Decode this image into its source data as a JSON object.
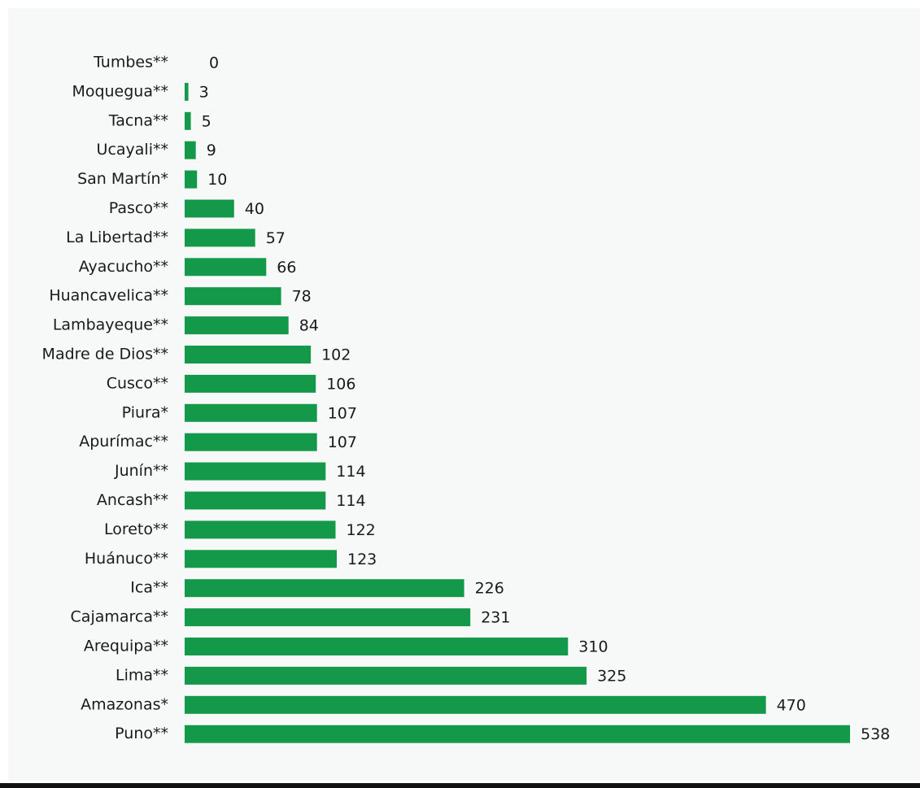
{
  "chart_data": {
    "type": "bar",
    "orientation": "horizontal",
    "categories": [
      "Tumbes**",
      "Moquegua**",
      "Tacna**",
      "Ucayali**",
      "San Martín*",
      "Pasco**",
      "La Libertad**",
      "Ayacucho**",
      "Huancavelica**",
      "Lambayeque**",
      "Madre de Dios**",
      "Cusco**",
      "Piura*",
      "Apurímac**",
      "Junín**",
      "Ancash**",
      "Loreto**",
      "Huánuco**",
      "Ica**",
      "Cajamarca**",
      "Arequipa**",
      "Lima**",
      "Amazonas*",
      "Puno**"
    ],
    "values": [
      0,
      3,
      5,
      9,
      10,
      40,
      57,
      66,
      78,
      84,
      102,
      106,
      107,
      107,
      114,
      114,
      122,
      123,
      226,
      231,
      310,
      325,
      470,
      538
    ],
    "title": "",
    "xlabel": "",
    "ylabel": "",
    "xlim": [
      0,
      538
    ],
    "grid": false,
    "legend": "none",
    "bar_color": "#14994a",
    "data_labels": true
  }
}
